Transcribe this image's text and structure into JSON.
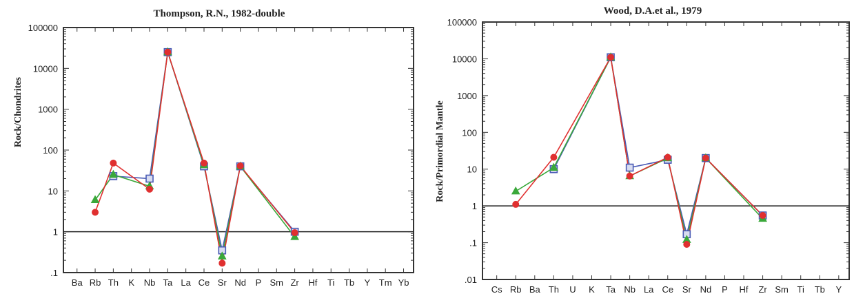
{
  "chart_data": [
    {
      "type": "line",
      "title": "Thompson, R.N., 1982-double",
      "xlabel": "",
      "ylabel": "Rock/Chondrites",
      "yscale": "log",
      "ylim": [
        0.1,
        100000
      ],
      "yticklabels": [
        "100000",
        "10000",
        "1000",
        "100",
        "10",
        "1",
        ".1"
      ],
      "categories": [
        "Ba",
        "Rb",
        "Th",
        "K",
        "Nb",
        "Ta",
        "La",
        "Ce",
        "Sr",
        "Nd",
        "P",
        "Sm",
        "Zr",
        "Hf",
        "Ti",
        "Tb",
        "Y",
        "Tm",
        "Yb"
      ],
      "reference_line": 1,
      "grid": false,
      "series": [
        {
          "marker": "square",
          "color": "#4a5bb5",
          "points": [
            [
              "Th",
              23
            ],
            [
              "Nb",
              20
            ],
            [
              "Ta",
              25000
            ],
            [
              "Ce",
              40
            ],
            [
              "Sr",
              0.35
            ],
            [
              "Nd",
              40
            ],
            [
              "Zr",
              1.0
            ]
          ]
        },
        {
          "marker": "triangle",
          "color": "#3aa83a",
          "points": [
            [
              "Rb",
              6
            ],
            [
              "Th",
              25
            ],
            [
              "Nb",
              13
            ],
            [
              "Ta",
              25000
            ],
            [
              "Ce",
              43
            ],
            [
              "Sr",
              0.25
            ],
            [
              "Nd",
              40
            ],
            [
              "Zr",
              0.75
            ]
          ]
        },
        {
          "marker": "circle",
          "color": "#e03030",
          "points": [
            [
              "Rb",
              3
            ],
            [
              "Th",
              48
            ],
            [
              "Nb",
              11
            ],
            [
              "Ta",
              25000
            ],
            [
              "Ce",
              48
            ],
            [
              "Sr",
              0.17
            ],
            [
              "Nd",
              41
            ],
            [
              "Zr",
              0.95
            ]
          ]
        }
      ]
    },
    {
      "type": "line",
      "title": "Wood, D.A.et al., 1979",
      "xlabel": "",
      "ylabel": "Rock/Primordial Mantle",
      "yscale": "log",
      "ylim": [
        0.01,
        100000
      ],
      "yticklabels": [
        "100000",
        "10000",
        "1000",
        "100",
        "10",
        "1",
        ".1",
        ".01"
      ],
      "categories": [
        "Cs",
        "Rb",
        "Ba",
        "Th",
        "U",
        "K",
        "Ta",
        "Nb",
        "La",
        "Ce",
        "Sr",
        "Nd",
        "P",
        "Hf",
        "Zr",
        "Sm",
        "Ti",
        "Tb",
        "Y"
      ],
      "reference_line": 1,
      "grid": false,
      "series": [
        {
          "marker": "square",
          "color": "#4a5bb5",
          "points": [
            [
              "Th",
              10
            ],
            [
              "Ta",
              11000
            ],
            [
              "Nb",
              11
            ],
            [
              "Ce",
              18
            ],
            [
              "Sr",
              0.17
            ],
            [
              "Nd",
              20
            ],
            [
              "Zr",
              0.55
            ]
          ]
        },
        {
          "marker": "triangle",
          "color": "#3aa83a",
          "points": [
            [
              "Rb",
              2.5
            ],
            [
              "Th",
              11
            ],
            [
              "Ta",
              11000
            ],
            [
              "Nb",
              6.5
            ],
            [
              "Ce",
              20
            ],
            [
              "Sr",
              0.12
            ],
            [
              "Nd",
              20
            ],
            [
              "Zr",
              0.45
            ]
          ]
        },
        {
          "marker": "circle",
          "color": "#e03030",
          "points": [
            [
              "Rb",
              1.1
            ],
            [
              "Th",
              21
            ],
            [
              "Ta",
              11000
            ],
            [
              "Nb",
              6.5
            ],
            [
              "Ce",
              21
            ],
            [
              "Sr",
              0.09
            ],
            [
              "Nd",
              20
            ],
            [
              "Zr",
              0.55
            ]
          ]
        }
      ]
    }
  ]
}
